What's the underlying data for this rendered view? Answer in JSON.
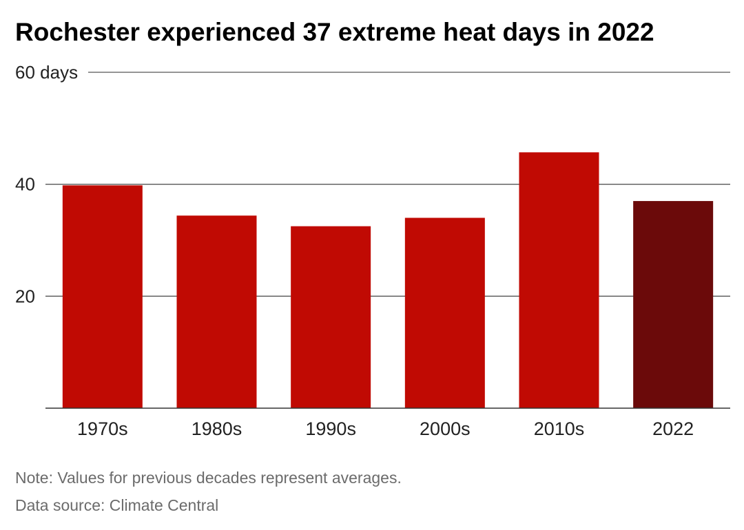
{
  "chart_data": {
    "type": "bar",
    "title": "Rochester experienced 37 extreme heat days in 2022",
    "categories": [
      "1970s",
      "1980s",
      "1990s",
      "2000s",
      "2010s",
      "2022"
    ],
    "values": [
      39.8,
      34.4,
      32.5,
      34.0,
      45.7,
      37.0
    ],
    "ylim": [
      0,
      60
    ],
    "yticks": [
      {
        "value": 20,
        "label": "20"
      },
      {
        "value": 40,
        "label": "40"
      },
      {
        "value": 60,
        "label": "60 days"
      }
    ],
    "grid": true,
    "colors": {
      "decade": "#c00a03",
      "highlight": "#6b0a0a",
      "grid": "#555555",
      "axis": "#333333"
    },
    "highlight_category": "2022"
  },
  "footer": {
    "note": "Note: Values for previous decades represent averages.",
    "source": "Data source: Climate Central"
  }
}
